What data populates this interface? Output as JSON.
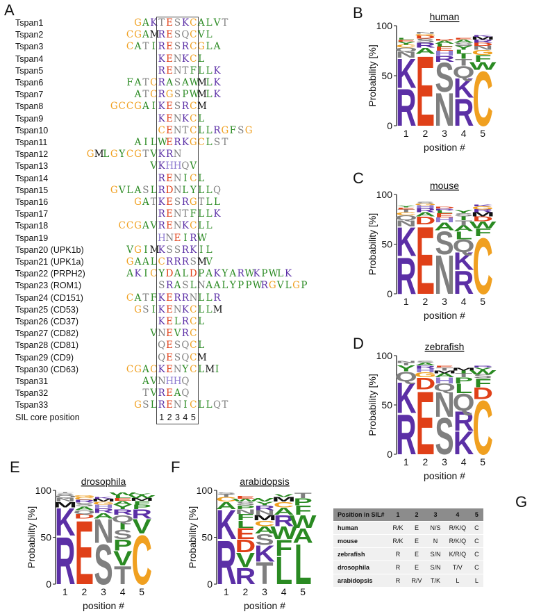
{
  "figure": {
    "panel_labels": [
      "A",
      "B",
      "C",
      "D",
      "E",
      "F",
      "G"
    ]
  },
  "alignment": {
    "sequences": [
      {
        "name": "Tspan1",
        "pre": "GAK",
        "core": "TESKC",
        "post": "ALVT"
      },
      {
        "name": "Tspan2",
        "pre": "CGAM",
        "core": "RESQC",
        "post": "VL"
      },
      {
        "name": "Tspan3",
        "pre": "CATI",
        "core": "RESRC",
        "post": "GLA"
      },
      {
        "name": "Tspan4",
        "pre": "",
        "core": "KENKC",
        "post": "L"
      },
      {
        "name": "Tspan5",
        "pre": "",
        "core": "RENTF",
        "post": "LLK"
      },
      {
        "name": "Tspan6",
        "pre": "FATC",
        "core": "RASAW",
        "post": "MLK"
      },
      {
        "name": "Tspan7",
        "pre": "ATC",
        "core": "RGSPW",
        "post": "MLK"
      },
      {
        "name": "Tspan8",
        "pre": "GCCGAI",
        "core": "KESRC",
        "post": "M"
      },
      {
        "name": "Tspan9",
        "pre": "",
        "core": "KENKC",
        "post": "L"
      },
      {
        "name": "Tspan10",
        "pre": "",
        "core": "CENTC",
        "post": "LLRGFSG"
      },
      {
        "name": "Tspan11",
        "pre": "AIL",
        "core": "WERKG",
        "post": "CLST"
      },
      {
        "name": "Tspan12",
        "pre": "GMLGYCGTV",
        "core": "KRN",
        "post": ""
      },
      {
        "name": "Tspan13",
        "pre": "V",
        "core": "KHHQV",
        "post": ""
      },
      {
        "name": "Tspan14",
        "pre": "",
        "core": "RENIC",
        "post": "L"
      },
      {
        "name": "Tspan15",
        "pre": "GVLASL",
        "core": "RDNLY",
        "post": "LLQ"
      },
      {
        "name": "Tspan16",
        "pre": "GAT",
        "core": "KESRG",
        "post": "TLL"
      },
      {
        "name": "Tspan17",
        "pre": "",
        "core": "RENTF",
        "post": "LLK"
      },
      {
        "name": "Tspan18",
        "pre": "CCGAV",
        "core": "RENKC",
        "post": "LL"
      },
      {
        "name": "Tspan19",
        "pre": "",
        "core": "HNEIR",
        "post": "W"
      },
      {
        "name": "Tspan20 (UPK1b)",
        "pre": "VGIM",
        "core": "KSSRK",
        "post": "IL"
      },
      {
        "name": "Tspan21 (UPK1a)",
        "pre": "GAAL",
        "core": "CRRRS",
        "post": "MV"
      },
      {
        "name": "Tspan22 (PRPH2)",
        "pre": "AKIC",
        "core": "YDALD",
        "post": "PAKYARWKPWLK"
      },
      {
        "name": "Tspan23 (ROM1)",
        "pre": "",
        "core": "SRASL",
        "post": "NAALYPPWRGVLGP"
      },
      {
        "name": "Tspan24 (CD151)",
        "pre": "CATF",
        "core": "KERRN",
        "post": "LLR"
      },
      {
        "name": "Tspan25 (CD53)",
        "pre": "GSI",
        "core": "KENKC",
        "post": "LLM"
      },
      {
        "name": "Tspan26 (CD37)",
        "pre": "",
        "core": "KELRC",
        "post": "L"
      },
      {
        "name": "Tspan27 (CD82)",
        "pre": "V",
        "core": "NEVRC",
        "post": ""
      },
      {
        "name": "Tspan28 (CD81)",
        "pre": "",
        "core": "QESQC",
        "post": "L"
      },
      {
        "name": "Tspan29 (CD9)",
        "pre": "",
        "core": "QESQC",
        "post": "M"
      },
      {
        "name": "Tspan30 (CD63)",
        "pre": "CGAC",
        "core": "KENYC",
        "post": "LMI"
      },
      {
        "name": "Tspan31",
        "pre": "AV",
        "core": "NHHQ",
        "post": ""
      },
      {
        "name": "Tspan32",
        "pre": "TV",
        "core": "REAQ",
        "post": ""
      },
      {
        "name": "Tspan33",
        "pre": "GSL",
        "core": "RENIC",
        "post": "LLQT"
      }
    ],
    "core_label": "SIL core position",
    "core_numbers": [
      "1",
      "2",
      "3",
      "4",
      "5"
    ]
  },
  "residue_colors": {
    "R": "#5b2fa6",
    "K": "#5b2fa6",
    "H": "#8e7bd0",
    "E": "#e04018",
    "D": "#e04018",
    "N": "#7f7f7f",
    "Q": "#7f7f7f",
    "S": "#7f7f7f",
    "T": "#7f7f7f",
    "C": "#f0a020",
    "G": "#f0a020",
    "A": "#2a8a22",
    "V": "#2a8a22",
    "L": "#2a8a22",
    "I": "#2a8a22",
    "M": "#111111",
    "F": "#2a8a22",
    "W": "#2a8a22",
    "Y": "#2a8a22",
    "P": "#2a8a22"
  },
  "logos": [
    {
      "panel": "B",
      "title": "human",
      "xlabel": "position #",
      "ylabel": "Probability [%]",
      "yticks": [
        "0",
        "50",
        "100"
      ],
      "ylim": [
        0,
        100
      ],
      "positions": [
        "1",
        "2",
        "3",
        "4",
        "5"
      ],
      "stacks": [
        [
          [
            "R",
            38
          ],
          [
            "K",
            30
          ],
          [
            "N",
            6
          ],
          [
            "Q",
            4
          ],
          [
            "C",
            3
          ],
          [
            "Y",
            3
          ],
          [
            "E",
            2
          ],
          [
            "L",
            2
          ]
        ],
        [
          [
            "E",
            72
          ],
          [
            "A",
            6
          ],
          [
            "R",
            5
          ],
          [
            "S",
            4
          ],
          [
            "D",
            3
          ],
          [
            "G",
            2
          ],
          [
            "N",
            2
          ]
        ],
        [
          [
            "N",
            34
          ],
          [
            "S",
            30
          ],
          [
            "R",
            6
          ],
          [
            "H",
            5
          ],
          [
            "E",
            4
          ],
          [
            "L",
            3
          ],
          [
            "A",
            3
          ],
          [
            "D",
            2
          ]
        ],
        [
          [
            "R",
            28
          ],
          [
            "K",
            20
          ],
          [
            "Q",
            12
          ],
          [
            "T",
            7
          ],
          [
            "I",
            5
          ],
          [
            "L",
            4
          ],
          [
            "Y",
            4
          ],
          [
            "S",
            3
          ],
          [
            "A",
            3
          ],
          [
            "E",
            2
          ]
        ],
        [
          [
            "C",
            56
          ],
          [
            "W",
            8
          ],
          [
            "F",
            7
          ],
          [
            "G",
            5
          ],
          [
            "N",
            4
          ],
          [
            "D",
            3
          ],
          [
            "R",
            3
          ],
          [
            "M",
            3
          ],
          [
            "K",
            2
          ]
        ]
      ]
    },
    {
      "panel": "C",
      "title": "mouse",
      "xlabel": "position #",
      "ylabel": "Probability [%]",
      "yticks": [
        "0",
        "50",
        "100"
      ],
      "ylim": [
        0,
        100
      ],
      "positions": [
        "1",
        "2",
        "3",
        "4",
        "5"
      ],
      "stacks": [
        [
          [
            "R",
            38
          ],
          [
            "K",
            30
          ],
          [
            "N",
            6
          ],
          [
            "Q",
            5
          ],
          [
            "C",
            3
          ],
          [
            "T",
            3
          ],
          [
            "E",
            2
          ],
          [
            "Y",
            2
          ]
        ],
        [
          [
            "E",
            70
          ],
          [
            "D",
            8
          ],
          [
            "A",
            4
          ],
          [
            "R",
            4
          ],
          [
            "H",
            3
          ],
          [
            "G",
            2
          ],
          [
            "S",
            2
          ]
        ],
        [
          [
            "N",
            40
          ],
          [
            "S",
            24
          ],
          [
            "A",
            8
          ],
          [
            "H",
            5
          ],
          [
            "E",
            4
          ],
          [
            "L",
            3
          ],
          [
            "R",
            2
          ],
          [
            "D",
            2
          ]
        ],
        [
          [
            "R",
            24
          ],
          [
            "K",
            18
          ],
          [
            "Q",
            13
          ],
          [
            "L",
            8
          ],
          [
            "A",
            6
          ],
          [
            "T",
            5
          ],
          [
            "I",
            4
          ],
          [
            "S",
            3
          ],
          [
            "Y",
            3
          ]
        ],
        [
          [
            "C",
            58
          ],
          [
            "F",
            8
          ],
          [
            "W",
            7
          ],
          [
            "D",
            5
          ],
          [
            "M",
            4
          ],
          [
            "R",
            3
          ],
          [
            "G",
            3
          ],
          [
            "K",
            2
          ]
        ]
      ]
    },
    {
      "panel": "D",
      "title": "zebrafish",
      "xlabel": "position #",
      "ylabel": "Probability [%]",
      "yticks": [
        "0",
        "50",
        "100"
      ],
      "ylim": [
        0,
        100
      ],
      "positions": [
        "1",
        "2",
        "3",
        "4",
        "5"
      ],
      "stacks": [
        [
          [
            "R",
            42
          ],
          [
            "K",
            32
          ],
          [
            "Q",
            10
          ],
          [
            "Y",
            6
          ],
          [
            "T",
            3
          ],
          [
            "N",
            2
          ]
        ],
        [
          [
            "E",
            66
          ],
          [
            "D",
            12
          ],
          [
            "G",
            5
          ],
          [
            "H",
            4
          ],
          [
            "R",
            3
          ],
          [
            "A",
            3
          ],
          [
            "S",
            2
          ]
        ],
        [
          [
            "S",
            38
          ],
          [
            "N",
            26
          ],
          [
            "Q",
            8
          ],
          [
            "H",
            6
          ],
          [
            "A",
            4
          ],
          [
            "M",
            3
          ],
          [
            "T",
            3
          ],
          [
            "E",
            2
          ]
        ],
        [
          [
            "K",
            24
          ],
          [
            "R",
            20
          ],
          [
            "Q",
            18
          ],
          [
            "L",
            10
          ],
          [
            "P",
            6
          ],
          [
            "T",
            4
          ],
          [
            "I",
            3
          ],
          [
            "M",
            3
          ]
        ],
        [
          [
            "C",
            56
          ],
          [
            "D",
            12
          ],
          [
            "F",
            9
          ],
          [
            "S",
            4
          ],
          [
            "W",
            4
          ],
          [
            "Y",
            3
          ],
          [
            "R",
            2
          ]
        ]
      ]
    },
    {
      "panel": "E",
      "title": "drosophila",
      "xlabel": "position #",
      "ylabel": "Probability [%]",
      "yticks": [
        "0",
        "50",
        "100"
      ],
      "ylim": [
        0,
        100
      ],
      "positions": [
        "1",
        "2",
        "3",
        "4",
        "5"
      ],
      "stacks": [
        [
          [
            "R",
            52
          ],
          [
            "K",
            30
          ],
          [
            "M",
            6
          ],
          [
            "N",
            4
          ],
          [
            "Q",
            3
          ],
          [
            "S",
            2
          ],
          [
            "T",
            1
          ]
        ],
        [
          [
            "E",
            70
          ],
          [
            "D",
            5
          ],
          [
            "Q",
            4
          ],
          [
            "A",
            4
          ],
          [
            "S",
            4
          ],
          [
            "R",
            3
          ],
          [
            "C",
            3
          ],
          [
            "G",
            2
          ]
        ],
        [
          [
            "S",
            44
          ],
          [
            "N",
            26
          ],
          [
            "A",
            6
          ],
          [
            "R",
            5
          ],
          [
            "H",
            4
          ],
          [
            "G",
            3
          ],
          [
            "M",
            3
          ],
          [
            "K",
            2
          ]
        ],
        [
          [
            "T",
            20
          ],
          [
            "V",
            16
          ],
          [
            "P",
            12
          ],
          [
            "S",
            10
          ],
          [
            "I",
            8
          ],
          [
            "Q",
            8
          ],
          [
            "R",
            6
          ],
          [
            "Y",
            5
          ],
          [
            "A",
            4
          ],
          [
            "E",
            3
          ],
          [
            "L",
            3
          ],
          [
            "W",
            3
          ]
        ],
        [
          [
            "C",
            54
          ],
          [
            "V",
            16
          ],
          [
            "R",
            10
          ],
          [
            "P",
            5
          ],
          [
            "F",
            4
          ],
          [
            "M",
            3
          ],
          [
            "W",
            3
          ],
          [
            "Y",
            2
          ]
        ]
      ]
    },
    {
      "panel": "F",
      "title": "arabidopsis",
      "xlabel": "position #",
      "ylabel": "Probability [%]",
      "yticks": [
        "0",
        "50",
        "100"
      ],
      "ylim": [
        0,
        100
      ],
      "positions": [
        "1",
        "2",
        "3",
        "4",
        "5"
      ],
      "stacks": [
        [
          [
            "R",
            48
          ],
          [
            "K",
            32
          ],
          [
            "A",
            8
          ],
          [
            "C",
            5
          ],
          [
            "T",
            3
          ],
          [
            "S",
            2
          ]
        ],
        [
          [
            "R",
            18
          ],
          [
            "V",
            16
          ],
          [
            "D",
            14
          ],
          [
            "E",
            12
          ],
          [
            "L",
            8
          ],
          [
            "F",
            7
          ],
          [
            "N",
            5
          ],
          [
            "P",
            4
          ],
          [
            "S",
            4
          ],
          [
            "W",
            3
          ],
          [
            "E",
            3
          ]
        ],
        [
          [
            "T",
            24
          ],
          [
            "K",
            18
          ],
          [
            "S",
            12
          ],
          [
            "A",
            8
          ],
          [
            "C",
            6
          ],
          [
            "M",
            6
          ],
          [
            "N",
            5
          ],
          [
            "R",
            5
          ],
          [
            "Y",
            4
          ],
          [
            "V",
            4
          ]
        ],
        [
          [
            "L",
            30
          ],
          [
            "F",
            18
          ],
          [
            "W",
            14
          ],
          [
            "R",
            12
          ],
          [
            "A",
            8
          ],
          [
            "C",
            6
          ],
          [
            "M",
            5
          ],
          [
            "V",
            3
          ]
        ],
        [
          [
            "L",
            44
          ],
          [
            "A",
            16
          ],
          [
            "W",
            14
          ],
          [
            "F",
            10
          ],
          [
            "P",
            8
          ],
          [
            "T",
            6
          ]
        ]
      ]
    }
  ],
  "table": {
    "headers": [
      "Position in SIL#",
      "1",
      "2",
      "3",
      "4",
      "5"
    ],
    "rows": [
      [
        "human",
        "R/K",
        "E",
        "N/S",
        "R/K/Q",
        "C"
      ],
      [
        "mouse",
        "R/K",
        "E",
        "N",
        "R/K/Q",
        "C"
      ],
      [
        "zebrafish",
        "R",
        "E",
        "S/N",
        "K/R/Q",
        "C"
      ],
      [
        "drosophila",
        "R",
        "E",
        "S/N",
        "T/V",
        "C"
      ],
      [
        "arabidopsis",
        "R",
        "R/V",
        "T/K",
        "L",
        "L"
      ]
    ]
  }
}
